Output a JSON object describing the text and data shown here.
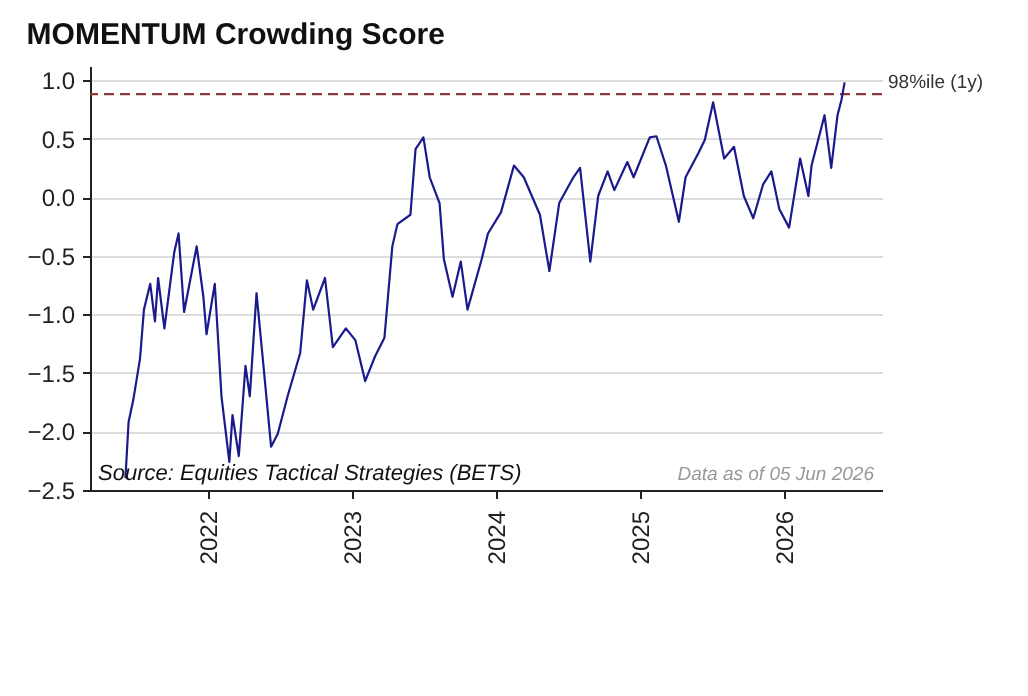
{
  "chart_data": {
    "type": "line",
    "title": "MOMENTUM Crowding Score",
    "x": [
      "2021-06-04",
      "2021-06-12",
      "2021-06-24",
      "2021-07-11",
      "2021-07-21",
      "2021-08-06",
      "2021-08-18",
      "2021-08-26",
      "2021-09-11",
      "2021-10-06",
      "2021-10-17",
      "2021-10-31",
      "2021-12-02",
      "2021-12-19",
      "2021-12-27",
      "2022-01-17",
      "2022-02-03",
      "2022-02-23",
      "2022-03-03",
      "2022-03-19",
      "2022-04-05",
      "2022-04-16",
      "2022-05-03",
      "2022-05-19",
      "2022-06-09",
      "2022-06-26",
      "2022-07-21",
      "2022-08-22",
      "2022-09-08",
      "2022-09-24",
      "2022-10-24",
      "2022-11-13",
      "2022-12-16",
      "2023-01-09",
      "2023-02-03",
      "2023-02-28",
      "2023-03-24",
      "2023-04-13",
      "2023-04-26",
      "2023-05-29",
      "2023-06-11",
      "2023-07-01",
      "2023-07-17",
      "2023-08-11",
      "2023-08-22",
      "2023-09-13",
      "2023-10-04",
      "2023-10-21",
      "2023-11-26",
      "2023-12-12",
      "2024-01-14",
      "2024-02-16",
      "2024-03-12",
      "2024-04-22",
      "2024-05-16",
      "2024-06-10",
      "2024-07-16",
      "2024-08-02",
      "2024-08-28",
      "2024-09-17",
      "2024-10-11",
      "2024-10-28",
      "2024-11-30",
      "2024-12-16",
      "2025-01-26",
      "2025-02-12",
      "2025-03-08",
      "2025-04-10",
      "2025-04-27",
      "2025-05-30",
      "2025-06-15",
      "2025-07-06",
      "2025-08-03",
      "2025-08-28",
      "2025-09-22",
      "2025-10-16",
      "2025-11-10",
      "2025-12-01",
      "2025-12-21",
      "2026-01-15",
      "2026-02-12",
      "2026-03-05",
      "2026-03-13",
      "2026-03-30",
      "2026-04-15",
      "2026-05-02",
      "2026-05-18",
      "2026-05-28",
      "2026-06-05"
    ],
    "series": [
      {
        "color": "#1a1a8c",
        "values": [
          -2.4,
          -1.92,
          -1.73,
          -1.38,
          -0.96,
          -0.74,
          -1.06,
          -0.69,
          -1.12,
          -0.47,
          -0.31,
          -0.98,
          -0.42,
          -0.85,
          -1.17,
          -0.74,
          -1.7,
          -2.26,
          -1.86,
          -2.21,
          -1.44,
          -1.7,
          -0.82,
          -1.38,
          -2.13,
          -2.02,
          -1.7,
          -1.33,
          -0.71,
          -0.96,
          -0.69,
          -1.28,
          -1.12,
          -1.22,
          -1.57,
          -1.36,
          -1.2,
          -0.42,
          -0.23,
          -0.15,
          0.41,
          0.51,
          0.17,
          -0.05,
          -0.53,
          -0.85,
          -0.55,
          -0.96,
          -0.53,
          -0.31,
          -0.13,
          0.27,
          0.17,
          -0.15,
          -0.63,
          -0.05,
          0.17,
          0.25,
          -0.55,
          0.01,
          0.22,
          0.06,
          0.3,
          0.17,
          0.51,
          0.52,
          0.27,
          -0.21,
          0.17,
          0.38,
          0.49,
          0.81,
          0.33,
          0.43,
          0.01,
          -0.18,
          0.11,
          0.22,
          -0.1,
          -0.26,
          0.33,
          0.01,
          0.27,
          0.49,
          0.7,
          0.25,
          0.7,
          0.83,
          0.98
        ]
      }
    ],
    "xlim": [
      "2021-03-06",
      "2026-09-08"
    ],
    "xticks": [
      "2022",
      "2023",
      "2024",
      "2025",
      "2026"
    ],
    "ylim": [
      -2.5,
      1.12
    ],
    "yticks": [
      {
        "value": -2.5,
        "label": "−2.5"
      },
      {
        "value": -2,
        "label": "−2.0"
      },
      {
        "value": -1.5,
        "label": "−1.5"
      },
      {
        "value": -1,
        "label": "−1.0"
      },
      {
        "value": -0.5,
        "label": "−0.5"
      },
      {
        "value": 0,
        "label": "0.0"
      },
      {
        "value": 0.5,
        "label": "0.5"
      },
      {
        "value": 1,
        "label": "1.0"
      }
    ],
    "grid": "y",
    "ref_lines": [
      {
        "axis": "y",
        "value": 0.88,
        "label": "98%ile (1y)",
        "color": "#8b3a3a",
        "line_style": "dashed"
      }
    ],
    "annotations": [
      "Source: Equities Tactical Strategies (BETS)",
      "Data as of 05 Jun 2026"
    ]
  }
}
